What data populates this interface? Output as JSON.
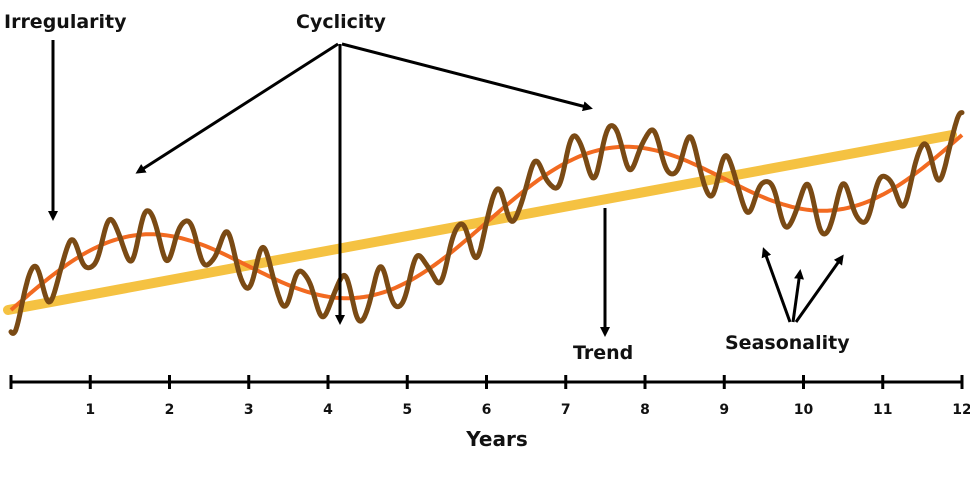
{
  "labels": {
    "irregularity": "Irregularity",
    "cyclicity": "Cyclicity",
    "trend": "Trend",
    "seasonality": "Seasonality",
    "x_axis_title": "Years"
  },
  "x_ticks": [
    "1",
    "2",
    "3",
    "4",
    "5",
    "6",
    "7",
    "8",
    "9",
    "10",
    "11",
    "12"
  ],
  "colors": {
    "trend_line": "#F5C242",
    "cycle_curve": "#F26A21",
    "observed_series": "#7A4A14",
    "arrows": "#000000",
    "axis": "#000000"
  },
  "chart_data": {
    "type": "line",
    "x_range": [
      0,
      12
    ],
    "x_ticks": [
      1,
      2,
      3,
      4,
      5,
      6,
      7,
      8,
      9,
      10,
      11,
      12
    ],
    "xlabel": "Years",
    "components": [
      "Trend",
      "Cyclicity",
      "Seasonality",
      "Irregularity"
    ]
  }
}
